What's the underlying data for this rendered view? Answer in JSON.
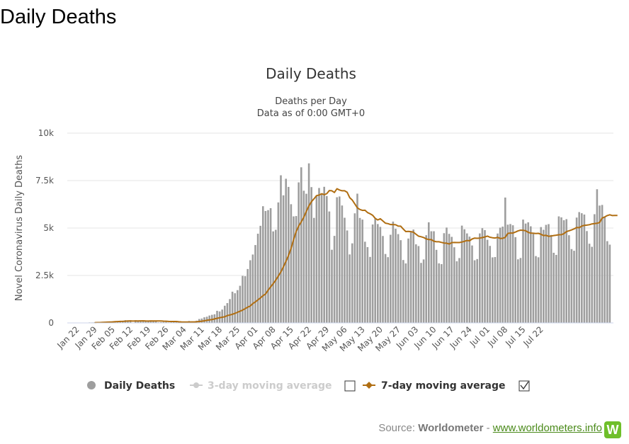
{
  "page_heading": "Daily Deaths",
  "colors": {
    "bar": "#9e9e9e",
    "ma7": "#b06e12",
    "ma3_disabled": "#cccccc",
    "grid": "#e6e6e6",
    "link": "#4a8a1a",
    "logo": "#6fbf2a"
  },
  "chart_data": {
    "type": "bar",
    "title": "Daily Deaths",
    "subtitle_line1": "Deaths per Day",
    "subtitle_line2": "Data as of 0:00 GMT+0",
    "ylabel": "Novel Coronavirus Daily Deaths",
    "ylim": [
      0,
      10000
    ],
    "yticks": [
      {
        "value": 0,
        "label": "0"
      },
      {
        "value": 2500,
        "label": "2.5k"
      },
      {
        "value": 5000,
        "label": "5k"
      },
      {
        "value": 7500,
        "label": "7.5k"
      },
      {
        "value": 10000,
        "label": "10k"
      }
    ],
    "start_date": "Jan 22",
    "xtick_labels": [
      "Jan 22",
      "Jan 29",
      "Feb 05",
      "Feb 12",
      "Feb 19",
      "Feb 26",
      "Mar 04",
      "Mar 11",
      "Mar 18",
      "Mar 25",
      "Apr 01",
      "Apr 08",
      "Apr 15",
      "Apr 22",
      "Apr 29",
      "May 06",
      "May 13",
      "May 20",
      "May 27",
      "Jun 03",
      "Jun 10",
      "Jun 17",
      "Jun 24",
      "Jul 01",
      "Jul 08",
      "Jul 15",
      "Jul 22"
    ],
    "xtick_step_days": 7,
    "series": [
      {
        "name": "Daily Deaths",
        "kind": "bar",
        "values": [
          17,
          0,
          8,
          16,
          14,
          26,
          26,
          38,
          42,
          46,
          57,
          64,
          66,
          73,
          86,
          89,
          97,
          108,
          97,
          146,
          121,
          143,
          5,
          142,
          105,
          98,
          139,
          115,
          98,
          136,
          105,
          122,
          31,
          42,
          51,
          53,
          28,
          34,
          44,
          48,
          53,
          65,
          55,
          60,
          101,
          70,
          55,
          116,
          205,
          230,
          296,
          326,
          389,
          426,
          454,
          638,
          606,
          704,
          905,
          1044,
          1256,
          1646,
          1564,
          1727,
          1957,
          2478,
          2461,
          2840,
          3302,
          3604,
          4102,
          4700,
          5116,
          6149,
          5896,
          5942,
          6046,
          4823,
          4906,
          6349,
          7779,
          6723,
          7596,
          7166,
          6255,
          5613,
          5631,
          7405,
          8199,
          6966,
          6806,
          8407,
          7156,
          5535,
          6707,
          7109,
          6802,
          7171,
          6687,
          5872,
          3855,
          4586,
          6622,
          6662,
          6187,
          5542,
          4871,
          3609,
          4192,
          5774,
          6810,
          5532,
          5444,
          4279,
          3995,
          3477,
          5187,
          5500,
          5210,
          5060,
          4580,
          3632,
          3465,
          4645,
          5340,
          4961,
          4680,
          4360,
          3314,
          3135,
          4445,
          4772,
          4920,
          4140,
          4050,
          3162,
          3345,
          4621,
          5302,
          4830,
          4830,
          3850,
          3137,
          3098,
          4728,
          5024,
          4692,
          4535,
          3986,
          3247,
          3417,
          5127,
          4935,
          4716,
          4547,
          4080,
          3300,
          3365,
          4716,
          4992,
          4890,
          4380,
          4058,
          3453,
          3472,
          4710,
          5020,
          5075,
          6606,
          5178,
          5210,
          5145,
          4520,
          3351,
          3421,
          5445,
          5235,
          5301,
          5090,
          4690,
          3521,
          3458,
          5050,
          4908,
          5167,
          5205,
          4636,
          3696,
          3584,
          5613,
          5560,
          5410,
          5468,
          4620,
          3890,
          3802,
          5550,
          5840,
          5780,
          5711,
          4839,
          4173,
          4011,
          5728,
          7043,
          6183,
          6216,
          5600,
          4308,
          4125
        ]
      },
      {
        "name": "3-day moving average",
        "kind": "line",
        "visible": false
      },
      {
        "name": "7-day moving average",
        "kind": "line",
        "values": [
          null,
          null,
          null,
          null,
          null,
          null,
          null,
          14,
          18,
          20,
          25,
          34,
          41,
          47,
          54,
          63,
          71,
          77,
          81,
          89,
          99,
          101,
          97,
          102,
          103,
          109,
          108,
          99,
          97,
          100,
          101,
          103,
          103,
          99,
          92,
          88,
          80,
          76,
          76,
          74,
          60,
          54,
          50,
          50,
          50,
          53,
          53,
          60,
          74,
          88,
          111,
          138,
          158,
          175,
          210,
          244,
          272,
          297,
          325,
          388,
          418,
          455,
          502,
          559,
          618,
          677,
          751,
          829,
          891,
          1017,
          1107,
          1211,
          1319,
          1436,
          1523,
          1724,
          1899,
          2070,
          2252,
          2471,
          2683,
          2954,
          3244,
          3552,
          3926,
          4388,
          4810,
          5107,
          5323,
          5566,
          5875,
          6165,
          6388,
          6540,
          6709,
          6735,
          6805,
          6757,
          6808,
          6975,
          6962,
          6872,
          7071,
          7004,
          6961,
          6964,
          6883,
          6600,
          6475,
          6273,
          6064,
          5978,
          5928,
          5937,
          5812,
          5751,
          5673,
          5512,
          5427,
          5489,
          5374,
          5256,
          5231,
          5181,
          5184,
          5173,
          5102,
          5098,
          4948,
          4815,
          4826,
          4810,
          4780,
          4673,
          4572,
          4540,
          4500,
          4426,
          4394,
          4389,
          4307,
          4275,
          4277,
          4242,
          4210,
          4202,
          4157,
          4231,
          4240,
          4236,
          4236,
          4261,
          4298,
          4344,
          4330,
          4420,
          4470,
          4460,
          4470,
          4497,
          4528,
          4573,
          4516,
          4487,
          4473,
          4506,
          4451,
          4459,
          4509,
          4716,
          4734,
          4736,
          4787,
          4848,
          4888,
          4882,
          4860,
          4773,
          4736,
          4725,
          4710,
          4721,
          4670,
          4603,
          4616,
          4564,
          4578,
          4603,
          4622,
          4647,
          4648,
          4706,
          4811,
          4856,
          4899,
          4956,
          5026,
          5020,
          5099,
          5140,
          5152,
          5177,
          5215,
          5230,
          5249,
          5292,
          5526,
          5582,
          5657,
          5697,
          5655,
          5662,
          5661
        ]
      }
    ],
    "legend": [
      {
        "label": "Daily Deaths",
        "enabled": true
      },
      {
        "label": "3-day moving average",
        "enabled": false
      },
      {
        "label": "7-day moving average",
        "enabled": true
      }
    ]
  },
  "source": {
    "prefix": "Source:",
    "brand": "Worldometer",
    "separator": "-",
    "link": "www.worldometers.info",
    "logo_letter": "W"
  }
}
